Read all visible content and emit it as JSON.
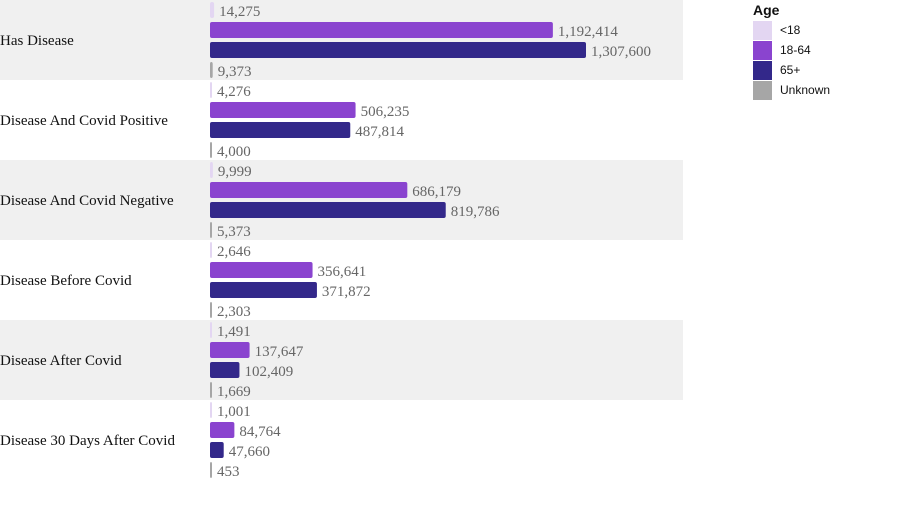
{
  "chart_data": {
    "type": "bar",
    "orientation": "horizontal",
    "categories": [
      "Has Disease",
      "Disease And Covid Positive",
      "Disease And Covid Negative",
      "Disease Before Covid",
      "Disease After Covid",
      "Disease 30 Days After Covid"
    ],
    "series": [
      {
        "name": "<18",
        "color": "#e3d6f2",
        "values": [
          14275,
          4276,
          9999,
          2646,
          1491,
          1001
        ]
      },
      {
        "name": "18-64",
        "color": "#8a44cf",
        "values": [
          1192414,
          506235,
          686179,
          356641,
          137647,
          84764
        ]
      },
      {
        "name": "65+",
        "color": "#33288a",
        "values": [
          1307600,
          487814,
          819786,
          371872,
          102409,
          47660
        ]
      },
      {
        "name": "Unknown",
        "color": "#a6a6a6",
        "values": [
          9373,
          4000,
          5373,
          2303,
          1669,
          453
        ]
      }
    ],
    "value_labels": [
      [
        "14,275",
        "1,192,414",
        "1,307,600",
        "9,373"
      ],
      [
        "4,276",
        "506,235",
        "487,814",
        "4,000"
      ],
      [
        "9,999",
        "686,179",
        "819,786",
        "5,373"
      ],
      [
        "2,646",
        "356,641",
        "371,872",
        "2,303"
      ],
      [
        "1,491",
        "137,647",
        "102,409",
        "1,669"
      ],
      [
        "1,001",
        "84,764",
        "47,660",
        "453"
      ]
    ],
    "legend_title": "Age",
    "legend_position": "top-right",
    "band_colors": [
      "#f0f0f0",
      "#ffffff"
    ]
  }
}
